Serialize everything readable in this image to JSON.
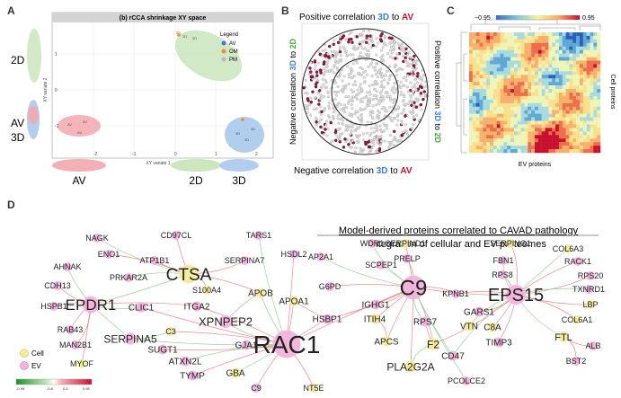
{
  "panels": {
    "a": {
      "letter": "A",
      "title": "(b) rCCA shrinkage XY space",
      "xlabel": "XY variate 1",
      "ylabel": "XY variate 2",
      "legend_title": "Legend",
      "legend": [
        {
          "label": "AV",
          "color": "#3b7fd6"
        },
        {
          "label": "OM",
          "color": "#f08c2c"
        },
        {
          "label": "PM",
          "color": "#b9b9b9"
        }
      ],
      "side_labels": [
        "2D",
        "AV",
        "3D"
      ],
      "bottom_labels": [
        "AV",
        "2D",
        "3D"
      ],
      "xticks": [
        "-2",
        "-1",
        "0",
        "1",
        "2"
      ],
      "yticks": [
        "1",
        "0",
        "-1"
      ]
    },
    "b": {
      "letter": "B",
      "top_prefix": "Positive correlation ",
      "top_3d": "3D",
      "top_mid": " to ",
      "top_av": "AV",
      "left_label": "Negative correlation 3D to 2D",
      "right_label": "Positive correlation 3D to 2D",
      "bottom_prefix": "Negative correlation ",
      "bottom_3d": "3D",
      "bottom_mid": " to ",
      "bottom_av": "AV"
    },
    "c": {
      "letter": "C",
      "scale_min": "−0.95",
      "scale_max": "0.95",
      "xlabel": "EV proteins",
      "ylabel": "Cell proteins"
    },
    "d": {
      "letter": "D",
      "title_line1": "Model-derived proteins correlated to CAVAD pathology",
      "title_line2": "integration of cellular and EV proteomes",
      "legend_cell": "Cell",
      "legend_ev": "EV",
      "scale_ticks": [
        "-0.95",
        "-0.8",
        "0.8",
        "0.95"
      ]
    }
  },
  "colors": {
    "cell": "#f3ec9a",
    "ev": "#f2b3dc",
    "av": "#c8102e",
    "threeD": "#3b7fd6",
    "twoD": "#4aa63a",
    "pos_edge": "#e96b6b",
    "neg_edge": "#7cc87c"
  },
  "network": {
    "nodes": [
      {
        "id": "NAGK",
        "t": "ev"
      },
      {
        "id": "CD97CL",
        "t": "ev"
      },
      {
        "id": "TARS1",
        "t": "ev"
      },
      {
        "id": "ENO1",
        "t": "ev"
      },
      {
        "id": "ATP1B1",
        "t": "ev"
      },
      {
        "id": "SERPINA7",
        "t": "ev"
      },
      {
        "id": "HSDL2",
        "t": "ev"
      },
      {
        "id": "AHNAK",
        "t": "ev"
      },
      {
        "id": "PRKAR2A",
        "t": "ev"
      },
      {
        "id": "CTSA",
        "t": "cell"
      },
      {
        "id": "CDH13",
        "t": "ev"
      },
      {
        "id": "S100A4",
        "t": "cell"
      },
      {
        "id": "HSPB1",
        "t": "ev"
      },
      {
        "id": "EPDR1",
        "t": "ev"
      },
      {
        "id": "ITGA2",
        "t": "ev"
      },
      {
        "id": "APOB",
        "t": "cell"
      },
      {
        "id": "RAB43",
        "t": "ev"
      },
      {
        "id": "CLIC1",
        "t": "ev"
      },
      {
        "id": "APOA1",
        "t": "cell"
      },
      {
        "id": "MAN2B1",
        "t": "ev"
      },
      {
        "id": "XPNPEP2",
        "t": "ev"
      },
      {
        "id": "SERPINA5",
        "t": "ev"
      },
      {
        "id": "C3",
        "t": "cell"
      },
      {
        "id": "SUGT1",
        "t": "ev"
      },
      {
        "id": "MYOF",
        "t": "cell"
      },
      {
        "id": "ATXN2L",
        "t": "ev"
      },
      {
        "id": "GJA1",
        "t": "ev"
      },
      {
        "id": "TYMP",
        "t": "ev"
      },
      {
        "id": "GBA",
        "t": "cell"
      },
      {
        "id": "RAC1",
        "t": "ev"
      },
      {
        "id": "C9",
        "t": "ev"
      },
      {
        "id": "NT5E",
        "t": "cell"
      },
      {
        "id": "HSBP1",
        "t": "ev"
      },
      {
        "id": "AP2A1",
        "t": "ev"
      },
      {
        "id": "G6PD",
        "t": "ev"
      },
      {
        "id": "WDR1",
        "t": "ev"
      },
      {
        "id": "SCPEP1",
        "t": "ev"
      },
      {
        "id": "IGHG1",
        "t": "ev"
      },
      {
        "id": "ITIH4",
        "t": "cell"
      },
      {
        "id": "SERPIND1",
        "t": "cell"
      },
      {
        "id": "PRELP",
        "t": "ev"
      },
      {
        "id": "C9b",
        "label": "C9",
        "t": "ev"
      },
      {
        "id": "KPNB1",
        "t": "ev"
      },
      {
        "id": "RPS7",
        "t": "ev"
      },
      {
        "id": "APCS",
        "t": "cell"
      },
      {
        "id": "F2",
        "t": "cell"
      },
      {
        "id": "CD47",
        "t": "ev"
      },
      {
        "id": "PLA2G2A",
        "t": "cell"
      },
      {
        "id": "PCOLCE2",
        "t": "ev"
      },
      {
        "id": "SERPING1",
        "t": "cell"
      },
      {
        "id": "FBN1",
        "t": "ev"
      },
      {
        "id": "RPS8",
        "t": "ev"
      },
      {
        "id": "EPS15",
        "t": "ev"
      },
      {
        "id": "GARS1",
        "t": "ev"
      },
      {
        "id": "VTN",
        "t": "cell"
      },
      {
        "id": "C8A",
        "t": "cell"
      },
      {
        "id": "TIMP3",
        "t": "ev"
      },
      {
        "id": "COL6A3",
        "t": "cell"
      },
      {
        "id": "RACK1",
        "t": "ev"
      },
      {
        "id": "RPS20",
        "t": "ev"
      },
      {
        "id": "TXNRD1",
        "t": "ev"
      },
      {
        "id": "LBP",
        "t": "cell"
      },
      {
        "id": "COL6A1",
        "t": "cell"
      },
      {
        "id": "FTL",
        "t": "cell"
      },
      {
        "id": "ALB",
        "t": "ev"
      },
      {
        "id": "BST2",
        "t": "ev"
      }
    ]
  }
}
